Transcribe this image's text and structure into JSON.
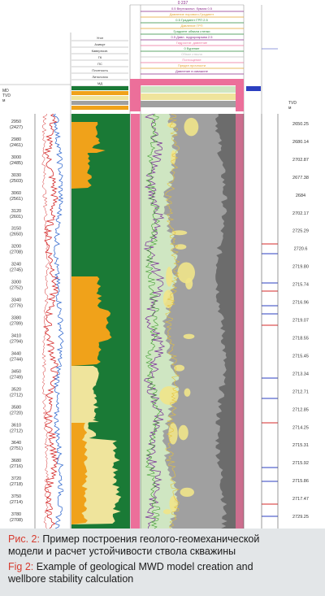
{
  "figure": {
    "header": {
      "top_title": "0 237",
      "track_header_lines": [
        "0.5 Вертикальн. бумага 0.5",
        "Давление порового-Градиент",
        "0.5 Градиент ГРП 2.5",
        "Давление ГРП",
        "Градиент обвала стенки",
        "0.5 Давл. гидроразрыва 2.5",
        "Гидростат. давление",
        "0 Бурение",
        "Обвал ствола",
        "Поглощение",
        "Предел прочности",
        "Давление в скважине"
      ],
      "left_labels": [
        "Угол",
        "Азимут",
        "Кавернозн.",
        "ГК",
        "ПС",
        "Плотность",
        "Литология",
        "МД"
      ],
      "depth_header": "MD\nTVD\nм",
      "right_header": "TVD\nм",
      "right_small": "Точка\nинтер.",
      "right_small2": "Сейсм.\nрасп."
    },
    "depth_track": [
      {
        "md": "2950",
        "tvd": "(2427)"
      },
      {
        "md": "2980",
        "tvd": "(2461)"
      },
      {
        "md": "3000",
        "tvd": "(2485)"
      },
      {
        "md": "3030",
        "tvd": "(2503)"
      },
      {
        "md": "3060",
        "tvd": "(2561)"
      },
      {
        "md": "3120",
        "tvd": "(2601)"
      },
      {
        "md": "3150",
        "tvd": "(2650)"
      },
      {
        "md": "3200",
        "tvd": "(2708)"
      },
      {
        "md": "3240",
        "tvd": "(2745)"
      },
      {
        "md": "3300",
        "tvd": "(2752)"
      },
      {
        "md": "3340",
        "tvd": "(2776)"
      },
      {
        "md": "3380",
        "tvd": "(2789)"
      },
      {
        "md": "3410",
        "tvd": "(2794)"
      },
      {
        "md": "3440",
        "tvd": "(2744)"
      },
      {
        "md": "3450",
        "tvd": "(2749)"
      },
      {
        "md": "3520",
        "tvd": "(2712)"
      },
      {
        "md": "3580",
        "tvd": "(2720)"
      },
      {
        "md": "3610",
        "tvd": "(2712)"
      },
      {
        "md": "3640",
        "tvd": "(2751)"
      },
      {
        "md": "3680",
        "tvd": "(2716)"
      },
      {
        "md": "3720",
        "tvd": "(2718)"
      },
      {
        "md": "3750",
        "tvd": "(2714)"
      },
      {
        "md": "3780",
        "tvd": "(2708)"
      }
    ],
    "right_depth_track": [
      "2650.25",
      "2680.14",
      "2702.87",
      "2677.38",
      "2684",
      "2702.17",
      "2725.29",
      "2720.6",
      "2719.80",
      "2715.74",
      "2716.96",
      "2719.07",
      "2718.55",
      "2715.45",
      "2713.34",
      "2712.71",
      "2712.85",
      "2714.25",
      "2715.31",
      "2715.92",
      "2715.86",
      "2717.47",
      "2729.25"
    ]
  },
  "caption": {
    "ru_label": "Рис. 2:",
    "ru_text_1": " Пример построения геолого-геомеханической",
    "ru_text_2": "модели и расчет устойчивости ствола скважины",
    "en_label": "Fig 2:",
    "en_text_1": " Example of geological MWD model creation and",
    "en_text_2": "wellbore stability calculation"
  },
  "colors": {
    "lithology_green": "#1a7a36",
    "lithology_orange": "#f0a21a",
    "lithology_yellow": "#efe49c",
    "pink": "#ec6f9a",
    "gray_band": "#a0a0a0",
    "dark_gray": "#6c6c6c",
    "light_green": "#cfe6c2",
    "caption_red": "#d63b2f"
  }
}
